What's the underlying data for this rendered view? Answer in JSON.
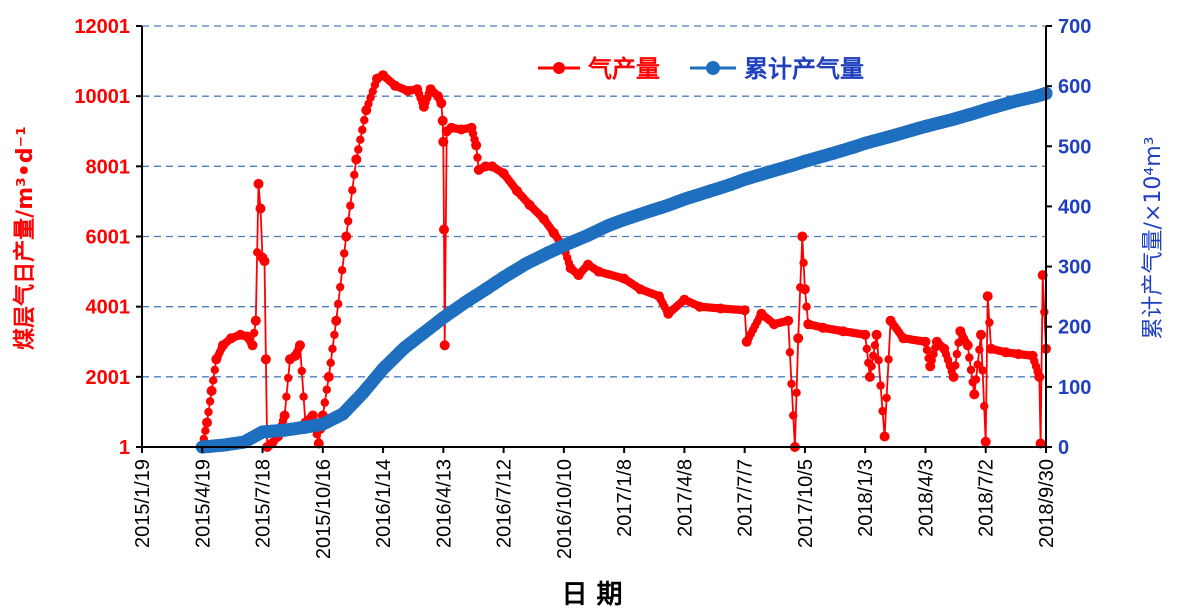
{
  "chart_data": {
    "type": "line",
    "x_axis": {
      "label": "日 期",
      "scale": "date",
      "ticks": [
        "2015/1/19",
        "2015/4/19",
        "2015/7/18",
        "2015/10/16",
        "2016/1/14",
        "2016/4/13",
        "2016/7/12",
        "2016/10/10",
        "2017/1/8",
        "2017/4/8",
        "2017/7/7",
        "2017/10/5",
        "2018/1/3",
        "2018/4/3",
        "2018/7/2",
        "2018/9/30"
      ],
      "range": [
        "2015/1/19",
        "2018/9/30"
      ]
    },
    "y_axis_left": {
      "label": "煤层气日产量/m³•d⁻¹",
      "ticks": [
        "1",
        "2001",
        "4001",
        "6001",
        "8001",
        "10001",
        "12001"
      ],
      "range": [
        1,
        12001
      ],
      "color": "#ff0000"
    },
    "y_axis_right": {
      "label": "累计产气量/×10⁴m³",
      "ticks": [
        "0",
        "100",
        "200",
        "300",
        "400",
        "500",
        "600",
        "700"
      ],
      "range": [
        0,
        700
      ],
      "color": "#1f3fbf"
    },
    "grid": {
      "horizontal": true,
      "style": "dashed",
      "color": "#4a7cc0"
    },
    "legend": {
      "position": "top-right",
      "entries": [
        {
          "label": "气产量",
          "color": "#ff0000",
          "marker": "circle"
        },
        {
          "label": "累计产气量",
          "color": "#1f6fc0",
          "marker": "circle"
        }
      ]
    },
    "series": [
      {
        "name": "气产量",
        "axis": "left",
        "color": "#ff0000",
        "points": [
          [
            "2015/4/19",
            1
          ],
          [
            "2015/4/26",
            700
          ],
          [
            "2015/5/3",
            1600
          ],
          [
            "2015/5/10",
            2500
          ],
          [
            "2015/5/20",
            2900
          ],
          [
            "2015/6/1",
            3100
          ],
          [
            "2015/6/15",
            3200
          ],
          [
            "2015/6/25",
            3150
          ],
          [
            "2015/7/3",
            2900
          ],
          [
            "2015/7/8",
            3600
          ],
          [
            "2015/7/12",
            7500
          ],
          [
            "2015/7/15",
            6800
          ],
          [
            "2015/7/18",
            5400
          ],
          [
            "2015/7/21",
            5300
          ],
          [
            "2015/7/23",
            2500
          ],
          [
            "2015/7/25",
            1
          ],
          [
            "2015/8/1",
            100
          ],
          [
            "2015/8/10",
            300
          ],
          [
            "2015/8/20",
            900
          ],
          [
            "2015/8/28",
            2500
          ],
          [
            "2015/9/5",
            2600
          ],
          [
            "2015/9/12",
            2900
          ],
          [
            "2015/9/20",
            700
          ],
          [
            "2015/10/1",
            900
          ],
          [
            "2015/10/10",
            100
          ],
          [
            "2015/10/16",
            900
          ],
          [
            "2015/10/25",
            2000
          ],
          [
            "2015/11/5",
            3600
          ],
          [
            "2015/11/20",
            6000
          ],
          [
            "2015/12/5",
            8200
          ],
          [
            "2015/12/20",
            9600
          ],
          [
            "2016/1/5",
            10500
          ],
          [
            "2016/1/14",
            10600
          ],
          [
            "2016/2/1",
            10300
          ],
          [
            "2016/2/20",
            10150
          ],
          [
            "2016/3/5",
            10200
          ],
          [
            "2016/3/15",
            9700
          ],
          [
            "2016/3/25",
            10200
          ],
          [
            "2016/4/5",
            10000
          ],
          [
            "2016/4/10",
            9800
          ],
          [
            "2016/4/12",
            9300
          ],
          [
            "2016/4/13",
            8700
          ],
          [
            "2016/4/14",
            6200
          ],
          [
            "2016/4/15",
            2900
          ],
          [
            "2016/4/18",
            9000
          ],
          [
            "2016/4/25",
            9100
          ],
          [
            "2016/5/10",
            9050
          ],
          [
            "2016/5/25",
            9100
          ],
          [
            "2016/6/1",
            8600
          ],
          [
            "2016/6/5",
            7900
          ],
          [
            "2016/6/15",
            8000
          ],
          [
            "2016/6/25",
            8000
          ],
          [
            "2016/7/12",
            7800
          ],
          [
            "2016/8/1",
            7300
          ],
          [
            "2016/8/20",
            6900
          ],
          [
            "2016/9/10",
            6500
          ],
          [
            "2016/9/25",
            6100
          ],
          [
            "2016/10/10",
            5700
          ],
          [
            "2016/10/20",
            5100
          ],
          [
            "2016/11/1",
            4900
          ],
          [
            "2016/11/15",
            5200
          ],
          [
            "2016/12/1",
            5000
          ],
          [
            "2017/1/8",
            4800
          ],
          [
            "2017/2/1",
            4500
          ],
          [
            "2017/3/1",
            4300
          ],
          [
            "2017/3/15",
            3800
          ],
          [
            "2017/4/8",
            4200
          ],
          [
            "2017/5/1",
            4000
          ],
          [
            "2017/6/1",
            3950
          ],
          [
            "2017/7/7",
            3900
          ],
          [
            "2017/7/10",
            3000
          ],
          [
            "2017/8/1",
            3800
          ],
          [
            "2017/8/20",
            3500
          ],
          [
            "2017/9/10",
            3600
          ],
          [
            "2017/9/20",
            0
          ],
          [
            "2017/9/25",
            3100
          ],
          [
            "2017/10/1",
            6000
          ],
          [
            "2017/10/5",
            4500
          ],
          [
            "2017/10/10",
            3500
          ],
          [
            "2017/11/1",
            3400
          ],
          [
            "2017/12/1",
            3300
          ],
          [
            "2018/1/3",
            3200
          ],
          [
            "2018/1/10",
            2000
          ],
          [
            "2018/1/20",
            3200
          ],
          [
            "2018/2/1",
            300
          ],
          [
            "2018/2/10",
            3600
          ],
          [
            "2018/3/1",
            3100
          ],
          [
            "2018/4/3",
            3000
          ],
          [
            "2018/4/10",
            2300
          ],
          [
            "2018/4/20",
            3000
          ],
          [
            "2018/5/1",
            2800
          ],
          [
            "2018/5/15",
            2000
          ],
          [
            "2018/5/25",
            3300
          ],
          [
            "2018/6/5",
            2900
          ],
          [
            "2018/6/15",
            1500
          ],
          [
            "2018/6/25",
            3200
          ],
          [
            "2018/7/2",
            150
          ],
          [
            "2018/7/5",
            4300
          ],
          [
            "2018/7/10",
            2800
          ],
          [
            "2018/8/1",
            2700
          ],
          [
            "2018/8/20",
            2650
          ],
          [
            "2018/9/10",
            2600
          ],
          [
            "2018/9/20",
            2000
          ],
          [
            "2018/9/22",
            100
          ],
          [
            "2018/9/25",
            4900
          ],
          [
            "2018/9/30",
            2800
          ]
        ]
      },
      {
        "name": "累计产气量",
        "axis": "right",
        "color": "#1f6fc0",
        "points": [
          [
            "2015/4/19",
            0
          ],
          [
            "2015/5/20",
            3
          ],
          [
            "2015/6/20",
            8
          ],
          [
            "2015/7/18",
            25
          ],
          [
            "2015/8/20",
            28
          ],
          [
            "2015/9/20",
            33
          ],
          [
            "2015/10/16",
            38
          ],
          [
            "2015/11/15",
            55
          ],
          [
            "2015/12/15",
            90
          ],
          [
            "2016/1/14",
            130
          ],
          [
            "2016/2/15",
            165
          ],
          [
            "2016/3/15",
            190
          ],
          [
            "2016/4/13",
            215
          ],
          [
            "2016/5/15",
            240
          ],
          [
            "2016/6/15",
            262
          ],
          [
            "2016/7/12",
            282
          ],
          [
            "2016/8/15",
            305
          ],
          [
            "2016/9/15",
            322
          ],
          [
            "2016/10/10",
            335
          ],
          [
            "2016/11/15",
            352
          ],
          [
            "2016/12/15",
            368
          ],
          [
            "2017/1/8",
            378
          ],
          [
            "2017/2/15",
            392
          ],
          [
            "2017/3/15",
            402
          ],
          [
            "2017/4/8",
            412
          ],
          [
            "2017/5/15",
            425
          ],
          [
            "2017/6/15",
            436
          ],
          [
            "2017/7/7",
            445
          ],
          [
            "2017/8/15",
            458
          ],
          [
            "2017/9/15",
            468
          ],
          [
            "2017/10/5",
            475
          ],
          [
            "2017/11/15",
            488
          ],
          [
            "2017/12/15",
            498
          ],
          [
            "2018/1/3",
            505
          ],
          [
            "2018/2/15",
            518
          ],
          [
            "2018/3/15",
            527
          ],
          [
            "2018/4/3",
            533
          ],
          [
            "2018/5/15",
            545
          ],
          [
            "2018/6/15",
            555
          ],
          [
            "2018/7/2",
            561
          ],
          [
            "2018/8/15",
            575
          ],
          [
            "2018/9/15",
            583
          ],
          [
            "2018/9/30",
            588
          ]
        ]
      }
    ]
  }
}
